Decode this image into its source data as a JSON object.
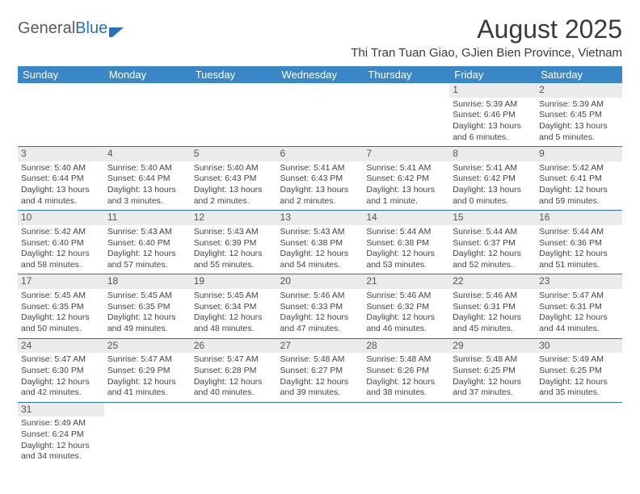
{
  "brand": {
    "part1": "General",
    "part2": "Blue"
  },
  "title": "August 2025",
  "location": "Thi Tran Tuan Giao, GJien Bien Province, Vietnam",
  "colors": {
    "header_bg": "#3a87c7",
    "header_text": "#ffffff",
    "row_border": "#2873b8",
    "daynum_bg": "#ebebeb",
    "text": "#444444",
    "title_text": "#3a3a3a"
  },
  "weekdays": [
    "Sunday",
    "Monday",
    "Tuesday",
    "Wednesday",
    "Thursday",
    "Friday",
    "Saturday"
  ],
  "weeks": [
    [
      null,
      null,
      null,
      null,
      null,
      {
        "n": "1",
        "sr": "5:39 AM",
        "ss": "6:46 PM",
        "dl": "13 hours and 6 minutes."
      },
      {
        "n": "2",
        "sr": "5:39 AM",
        "ss": "6:45 PM",
        "dl": "13 hours and 5 minutes."
      }
    ],
    [
      {
        "n": "3",
        "sr": "5:40 AM",
        "ss": "6:44 PM",
        "dl": "13 hours and 4 minutes."
      },
      {
        "n": "4",
        "sr": "5:40 AM",
        "ss": "6:44 PM",
        "dl": "13 hours and 3 minutes."
      },
      {
        "n": "5",
        "sr": "5:40 AM",
        "ss": "6:43 PM",
        "dl": "13 hours and 2 minutes."
      },
      {
        "n": "6",
        "sr": "5:41 AM",
        "ss": "6:43 PM",
        "dl": "13 hours and 2 minutes."
      },
      {
        "n": "7",
        "sr": "5:41 AM",
        "ss": "6:42 PM",
        "dl": "13 hours and 1 minute."
      },
      {
        "n": "8",
        "sr": "5:41 AM",
        "ss": "6:42 PM",
        "dl": "13 hours and 0 minutes."
      },
      {
        "n": "9",
        "sr": "5:42 AM",
        "ss": "6:41 PM",
        "dl": "12 hours and 59 minutes."
      }
    ],
    [
      {
        "n": "10",
        "sr": "5:42 AM",
        "ss": "6:40 PM",
        "dl": "12 hours and 58 minutes."
      },
      {
        "n": "11",
        "sr": "5:43 AM",
        "ss": "6:40 PM",
        "dl": "12 hours and 57 minutes."
      },
      {
        "n": "12",
        "sr": "5:43 AM",
        "ss": "6:39 PM",
        "dl": "12 hours and 55 minutes."
      },
      {
        "n": "13",
        "sr": "5:43 AM",
        "ss": "6:38 PM",
        "dl": "12 hours and 54 minutes."
      },
      {
        "n": "14",
        "sr": "5:44 AM",
        "ss": "6:38 PM",
        "dl": "12 hours and 53 minutes."
      },
      {
        "n": "15",
        "sr": "5:44 AM",
        "ss": "6:37 PM",
        "dl": "12 hours and 52 minutes."
      },
      {
        "n": "16",
        "sr": "5:44 AM",
        "ss": "6:36 PM",
        "dl": "12 hours and 51 minutes."
      }
    ],
    [
      {
        "n": "17",
        "sr": "5:45 AM",
        "ss": "6:35 PM",
        "dl": "12 hours and 50 minutes."
      },
      {
        "n": "18",
        "sr": "5:45 AM",
        "ss": "6:35 PM",
        "dl": "12 hours and 49 minutes."
      },
      {
        "n": "19",
        "sr": "5:45 AM",
        "ss": "6:34 PM",
        "dl": "12 hours and 48 minutes."
      },
      {
        "n": "20",
        "sr": "5:46 AM",
        "ss": "6:33 PM",
        "dl": "12 hours and 47 minutes."
      },
      {
        "n": "21",
        "sr": "5:46 AM",
        "ss": "6:32 PM",
        "dl": "12 hours and 46 minutes."
      },
      {
        "n": "22",
        "sr": "5:46 AM",
        "ss": "6:31 PM",
        "dl": "12 hours and 45 minutes."
      },
      {
        "n": "23",
        "sr": "5:47 AM",
        "ss": "6:31 PM",
        "dl": "12 hours and 44 minutes."
      }
    ],
    [
      {
        "n": "24",
        "sr": "5:47 AM",
        "ss": "6:30 PM",
        "dl": "12 hours and 42 minutes."
      },
      {
        "n": "25",
        "sr": "5:47 AM",
        "ss": "6:29 PM",
        "dl": "12 hours and 41 minutes."
      },
      {
        "n": "26",
        "sr": "5:47 AM",
        "ss": "6:28 PM",
        "dl": "12 hours and 40 minutes."
      },
      {
        "n": "27",
        "sr": "5:48 AM",
        "ss": "6:27 PM",
        "dl": "12 hours and 39 minutes."
      },
      {
        "n": "28",
        "sr": "5:48 AM",
        "ss": "6:26 PM",
        "dl": "12 hours and 38 minutes."
      },
      {
        "n": "29",
        "sr": "5:48 AM",
        "ss": "6:25 PM",
        "dl": "12 hours and 37 minutes."
      },
      {
        "n": "30",
        "sr": "5:49 AM",
        "ss": "6:25 PM",
        "dl": "12 hours and 35 minutes."
      }
    ],
    [
      {
        "n": "31",
        "sr": "5:49 AM",
        "ss": "6:24 PM",
        "dl": "12 hours and 34 minutes."
      },
      null,
      null,
      null,
      null,
      null,
      null
    ]
  ],
  "labels": {
    "sunrise": "Sunrise:",
    "sunset": "Sunset:",
    "daylight": "Daylight:"
  }
}
